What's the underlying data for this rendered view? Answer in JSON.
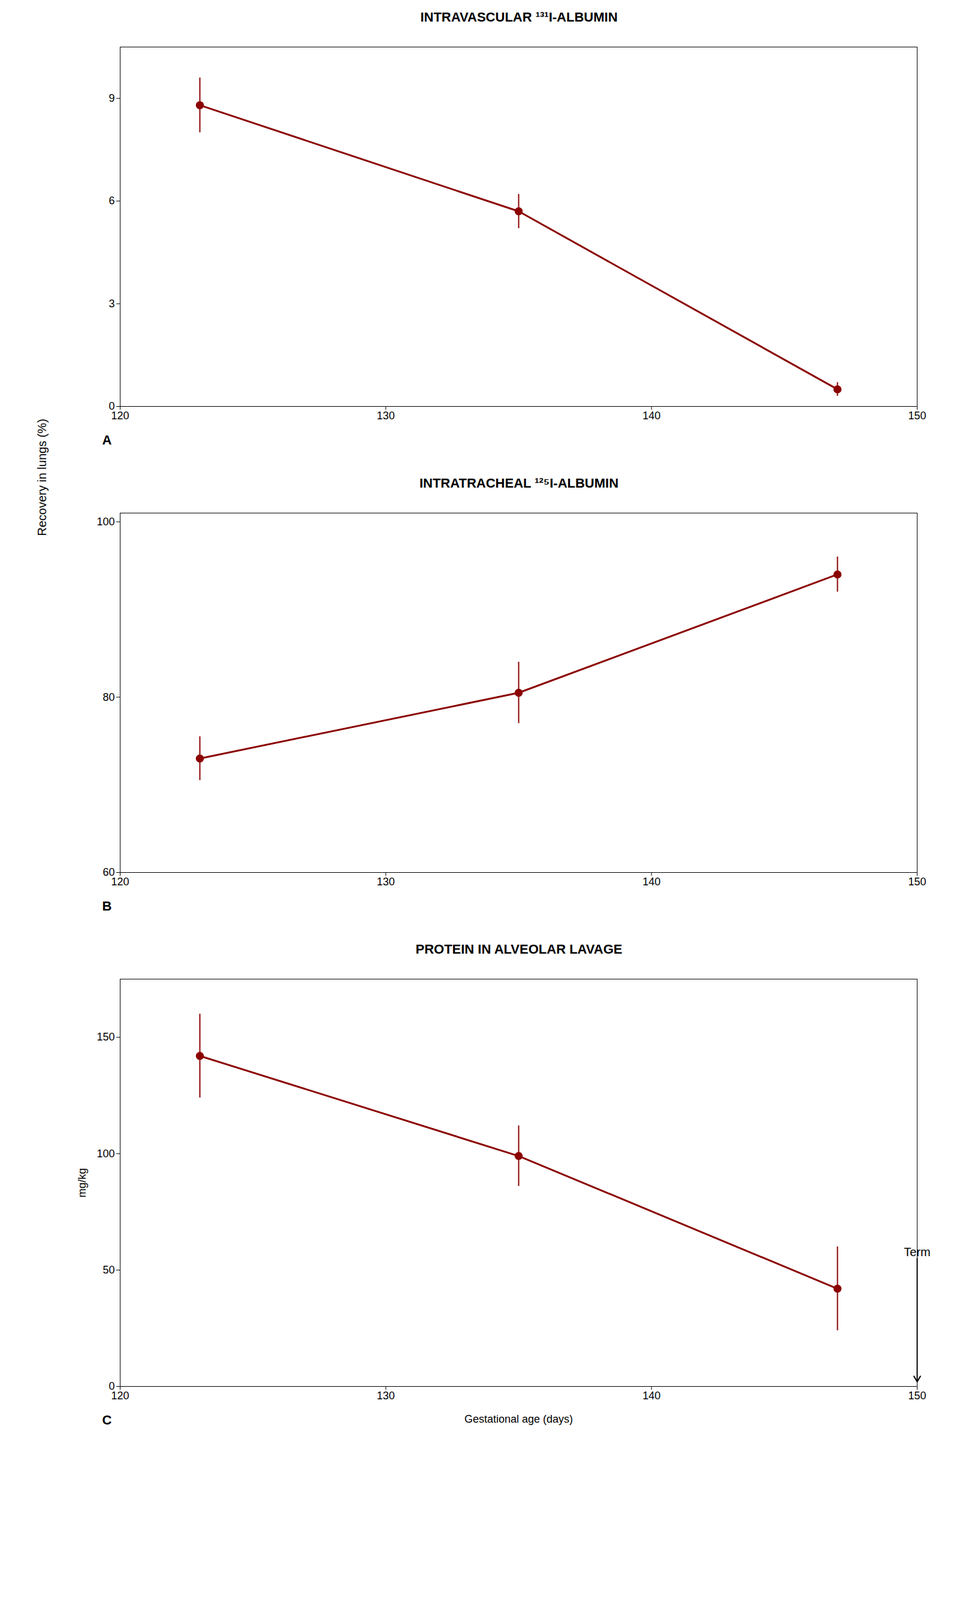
{
  "shared_ylabel": "Recovery in lungs (%)",
  "chart_data": [
    {
      "type": "line",
      "title": "INTRAVASCULAR ¹³¹I-ALBUMIN",
      "x": [
        123,
        135,
        147
      ],
      "values": [
        8.8,
        5.7,
        0.5
      ],
      "errors": [
        0.8,
        0.5,
        0.2
      ],
      "color": "#8B0000",
      "marker": "circle",
      "xlim": [
        120,
        150
      ],
      "ylim": [
        0,
        10.5
      ],
      "xticks": [
        120,
        130,
        140,
        150
      ],
      "yticks": [
        0,
        3,
        6,
        9
      ],
      "panel_label": "A"
    },
    {
      "type": "line",
      "title": "INTRATRACHEAL ¹²⁵I-ALBUMIN",
      "x": [
        123,
        135,
        147
      ],
      "values": [
        73,
        80.5,
        94
      ],
      "errors": [
        2.5,
        3.5,
        2.0
      ],
      "color": "#8B0000",
      "marker": "circle",
      "xlim": [
        120,
        150
      ],
      "ylim": [
        60,
        101
      ],
      "xticks": [
        120,
        130,
        140,
        150
      ],
      "yticks": [
        60,
        80,
        100
      ],
      "panel_label": "B"
    },
    {
      "type": "line",
      "title": "PROTEIN IN ALVEOLAR LAVAGE",
      "x": [
        123,
        135,
        147
      ],
      "values": [
        142,
        99,
        42
      ],
      "errors": [
        18,
        13,
        18
      ],
      "color": "#8B0000",
      "marker": "circle",
      "xlim": [
        120,
        150
      ],
      "ylim": [
        0,
        175
      ],
      "xticks": [
        120,
        130,
        140,
        150
      ],
      "yticks": [
        0,
        50,
        100,
        150
      ],
      "xlabel": "Gestational age (days)",
      "ylabel": "mg/kg",
      "panel_label": "C",
      "annotation": {
        "text": "Term",
        "x": 150,
        "y": 2,
        "text_y": 55
      }
    }
  ]
}
